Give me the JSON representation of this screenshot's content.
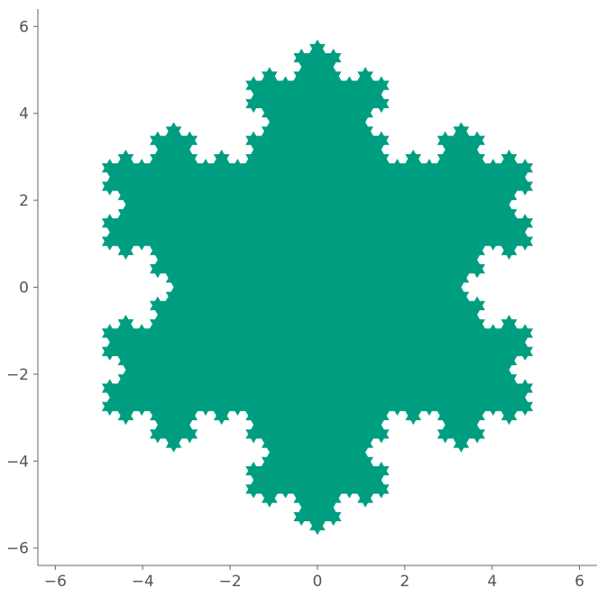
{
  "chart_data": {
    "type": "area",
    "title": "",
    "xlabel": "",
    "ylabel": "",
    "xlim": [
      -6.4,
      6.4
    ],
    "ylim": [
      -6.4,
      6.4
    ],
    "x_ticks": [
      -6,
      -4,
      -2,
      0,
      2,
      4,
      6
    ],
    "y_ticks": [
      -6,
      -4,
      -2,
      0,
      2,
      4,
      6
    ],
    "x_tick_labels": [
      "−6",
      "−4",
      "−2",
      "0",
      "2",
      "4",
      "6"
    ],
    "y_tick_labels": [
      "−6",
      "−4",
      "−2",
      "0",
      "2",
      "4",
      "6"
    ],
    "grid": false,
    "series": [
      {
        "shape": "koch-snowflake",
        "center": [
          0,
          0
        ],
        "vertex_radius": 5.7,
        "initial_vertex_angle_deg": 90,
        "iterations": 4,
        "color": "#009e80"
      }
    ],
    "spines": [
      "left",
      "bottom"
    ]
  }
}
